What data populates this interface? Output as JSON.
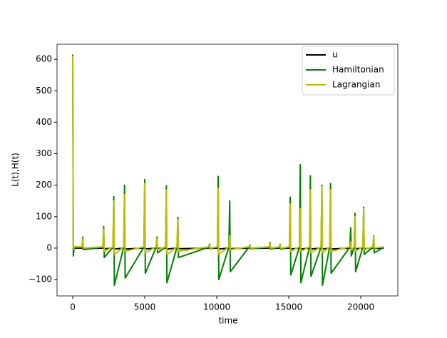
{
  "chart_data": {
    "type": "line",
    "x_label": "time",
    "y_label": "L(t),H(t)",
    "x": [
      0,
      40,
      100,
      640,
      700,
      740,
      2090,
      2150,
      2190,
      2790,
      2850,
      2890,
      3540,
      3600,
      3640,
      4940,
      5000,
      5040,
      5790,
      5850,
      5890,
      6440,
      6500,
      6540,
      7240,
      7300,
      7340,
      9440,
      9500,
      9540,
      10040,
      10100,
      10140,
      10840,
      10900,
      10940,
      12240,
      12300,
      12340,
      13640,
      13700,
      13740,
      14340,
      14400,
      14440,
      15040,
      15100,
      15140,
      15740,
      15800,
      15840,
      16440,
      16500,
      16540,
      17240,
      17300,
      17340,
      17840,
      17900,
      17940,
      19240,
      19300,
      19340,
      19540,
      19600,
      19640,
      20140,
      20200,
      20240,
      20840,
      20900,
      20940,
      21600
    ],
    "series": [
      {
        "name": "u",
        "color": "#000000",
        "values": [
          0,
          -2,
          0,
          0,
          3,
          -2,
          0,
          3,
          -2,
          0,
          4,
          -3,
          0,
          4,
          -3,
          0,
          4,
          -3,
          0,
          2,
          -1,
          0,
          4,
          -3,
          0,
          3,
          -2,
          0,
          8,
          -1,
          0,
          4,
          -3,
          0,
          3,
          -2,
          0,
          2,
          -1,
          0,
          2,
          -1,
          0,
          2,
          -1,
          0,
          4,
          -3,
          0,
          4,
          -3,
          0,
          4,
          -3,
          0,
          4,
          -3,
          0,
          4,
          -3,
          0,
          3,
          -2,
          0,
          3,
          -2,
          0,
          3,
          -2,
          0,
          2,
          -1,
          0
        ]
      },
      {
        "name": "Hamiltonian",
        "color": "#008000",
        "values": [
          615,
          -25,
          3,
          3,
          35,
          -5,
          3,
          68,
          -30,
          3,
          163,
          -118,
          3,
          200,
          -95,
          3,
          218,
          -80,
          3,
          35,
          -15,
          3,
          198,
          -110,
          3,
          98,
          -30,
          3,
          12,
          -2,
          3,
          228,
          -100,
          3,
          150,
          -75,
          3,
          10,
          -2,
          3,
          18,
          -3,
          3,
          12,
          -3,
          3,
          162,
          -85,
          3,
          265,
          -110,
          3,
          230,
          -90,
          3,
          200,
          -118,
          3,
          205,
          -80,
          3,
          65,
          -25,
          3,
          110,
          -75,
          3,
          130,
          -20,
          3,
          40,
          -15,
          3
        ]
      },
      {
        "name": "Lagrangian",
        "color": "#bfbf00",
        "values": [
          610,
          -5,
          4,
          4,
          30,
          0,
          4,
          60,
          -10,
          4,
          150,
          -20,
          4,
          170,
          -10,
          4,
          205,
          -15,
          4,
          30,
          -5,
          4,
          185,
          -20,
          4,
          90,
          -10,
          4,
          8,
          0,
          4,
          190,
          -20,
          4,
          40,
          -5,
          4,
          8,
          0,
          4,
          15,
          0,
          4,
          10,
          0,
          4,
          140,
          -10,
          4,
          125,
          -10,
          4,
          185,
          -15,
          4,
          195,
          -15,
          4,
          185,
          -10,
          4,
          20,
          -5,
          4,
          100,
          -10,
          4,
          125,
          -5,
          4,
          38,
          0,
          4
        ]
      }
    ],
    "xlim": [
      -1090,
      22570
    ],
    "ylim": [
      -152,
      648
    ],
    "xticks": [
      0,
      5000,
      10000,
      15000,
      20000
    ],
    "yticks": [
      {
        "value": -100,
        "label": "−100"
      },
      0,
      100,
      200,
      300,
      400,
      500,
      600
    ],
    "legend": "upper right"
  }
}
